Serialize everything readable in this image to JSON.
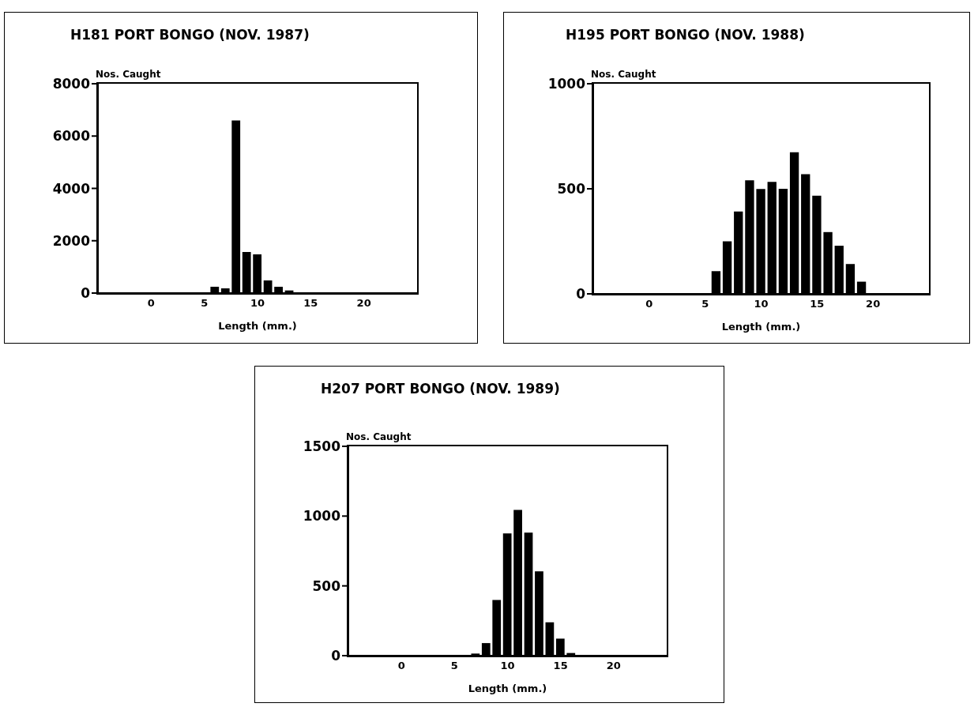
{
  "chart_data": [
    {
      "type": "bar",
      "title": "H181 PORT BONGO (NOV. 1987)",
      "xlabel": "Length (mm.)",
      "ylabel": "Nos. Caught",
      "color": "#000000",
      "x": [
        6,
        7,
        8,
        9,
        10,
        11,
        12,
        13,
        14
      ],
      "values": [
        240,
        180,
        6600,
        1570,
        1480,
        480,
        240,
        100,
        30
      ],
      "xlim": [
        -5,
        25
      ],
      "xticks": [
        0,
        5,
        10,
        15,
        20
      ],
      "ylim": [
        0,
        8000
      ],
      "yticks": [
        0,
        2000,
        4000,
        6000,
        8000
      ]
    },
    {
      "type": "bar",
      "title": "H195 PORT BONGO (NOV. 1988)",
      "xlabel": "Length (mm.)",
      "ylabel": "Nos. Caught",
      "color": "#000000",
      "x": [
        6,
        7,
        8,
        9,
        10,
        11,
        12,
        13,
        14,
        15,
        16,
        17,
        18,
        19
      ],
      "values": [
        108,
        250,
        392,
        540,
        499,
        533,
        500,
        674,
        570,
        467,
        294,
        229,
        142,
        58
      ],
      "xlim": [
        -5,
        25
      ],
      "xticks": [
        0,
        5,
        10,
        15,
        20
      ],
      "ylim": [
        0,
        1000
      ],
      "yticks": [
        0,
        500,
        1000
      ]
    },
    {
      "type": "bar",
      "title": "H207 PORT BONGO (NOV. 1989)",
      "xlabel": "Length (mm.)",
      "ylabel": "Nos. Caught",
      "color": "#000000",
      "x": [
        7,
        8,
        9,
        10,
        11,
        12,
        13,
        14,
        15,
        16
      ],
      "values": [
        15,
        90,
        399,
        876,
        1045,
        881,
        604,
        239,
        122,
        19
      ],
      "xlim": [
        -5,
        25
      ],
      "xticks": [
        0,
        5,
        10,
        15,
        20
      ],
      "ylim": [
        0,
        1500
      ],
      "yticks": [
        0,
        500,
        1000,
        1500
      ]
    }
  ]
}
